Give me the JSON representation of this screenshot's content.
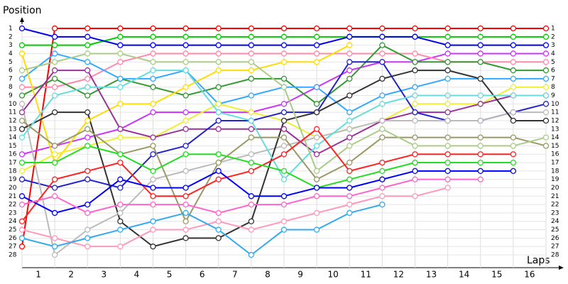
{
  "chart_data": {
    "type": "line",
    "y_label": "Position",
    "x_label": "Laps",
    "x": [
      0,
      1,
      2,
      3,
      4,
      5,
      6,
      7,
      8,
      9,
      10,
      11,
      12,
      13,
      14,
      15,
      16
    ],
    "xlim": [
      0,
      16
    ],
    "xticks": [
      {
        "value": 0.5,
        "label": "1"
      },
      {
        "value": 1.5,
        "label": "2"
      },
      {
        "value": 2.5,
        "label": "3"
      },
      {
        "value": 3.5,
        "label": "4"
      },
      {
        "value": 4.5,
        "label": "5"
      },
      {
        "value": 5.5,
        "label": "6"
      },
      {
        "value": 6.5,
        "label": "7"
      },
      {
        "value": 7.5,
        "label": "8"
      },
      {
        "value": 8.5,
        "label": "9"
      },
      {
        "value": 9.5,
        "label": "10"
      },
      {
        "value": 10.5,
        "label": "11"
      },
      {
        "value": 11.5,
        "label": "12"
      },
      {
        "value": 12.5,
        "label": "13"
      },
      {
        "value": 13.5,
        "label": "14"
      },
      {
        "value": 14.5,
        "label": "15"
      },
      {
        "value": 15.5,
        "label": "16"
      }
    ],
    "ylim": [
      28,
      1
    ],
    "yticks": [
      1,
      2,
      3,
      4,
      5,
      6,
      7,
      8,
      9,
      10,
      11,
      12,
      13,
      14,
      15,
      16,
      17,
      18,
      19,
      20,
      21,
      22,
      23,
      24,
      25,
      26,
      27,
      28
    ],
    "grid": true,
    "series": [
      {
        "color": "#ff0000",
        "values": [
          27,
          1,
          1,
          1,
          1,
          1,
          1,
          1,
          1,
          1,
          1,
          1,
          1,
          1,
          1,
          1,
          1
        ]
      },
      {
        "color": "#00cc00",
        "values": [
          3,
          3,
          3,
          2,
          2,
          2,
          2,
          2,
          2,
          2,
          2,
          2,
          2,
          2,
          2,
          2,
          2
        ]
      },
      {
        "color": "#0000ee",
        "values": [
          1,
          2,
          2,
          3,
          3,
          3,
          3,
          3,
          3,
          3,
          2,
          2,
          2,
          3,
          3,
          3,
          3
        ]
      },
      {
        "color": "#cc33ff",
        "values": [
          16,
          15,
          14,
          13,
          11,
          11,
          11,
          11,
          10,
          8,
          6,
          5,
          5,
          4,
          4,
          4,
          4
        ]
      },
      {
        "color": "#ff88aa",
        "values": [
          8,
          8,
          7,
          5,
          4,
          4,
          4,
          4,
          4,
          4,
          4,
          4,
          4,
          5,
          5,
          5,
          5
        ]
      },
      {
        "color": "#339933",
        "values": [
          9,
          7,
          9,
          7,
          8,
          9,
          8,
          7,
          7,
          10,
          7,
          3,
          5,
          5,
          5,
          6,
          6
        ]
      },
      {
        "color": "#33aaff",
        "values": [
          7,
          4,
          5,
          7,
          7,
          6,
          10,
          9,
          8,
          8,
          11,
          9,
          8,
          7,
          7,
          7,
          7
        ]
      },
      {
        "color": "#ffdd00",
        "values": [
          4,
          17,
          12,
          10,
          10,
          8,
          6,
          6,
          5,
          5,
          3,
          null,
          null,
          null,
          null,
          null,
          null
        ]
      },
      {
        "color": "#eeee33",
        "values": [
          18,
          16,
          15,
          14,
          14,
          12,
          10,
          11,
          12,
          14,
          13,
          12,
          10,
          10,
          10,
          8,
          8
        ]
      },
      {
        "color": "#993399",
        "values": [
          11,
          6,
          6,
          13,
          14,
          13,
          13,
          13,
          13,
          16,
          14,
          12,
          11,
          11,
          10,
          9,
          9
        ]
      },
      {
        "color": "#2222cc",
        "values": [
          19,
          20,
          19,
          20,
          16,
          15,
          12,
          12,
          11,
          11,
          5,
          5,
          11,
          12,
          12,
          11,
          10
        ]
      },
      {
        "color": "#bbbbbb",
        "values": [
          10,
          28,
          25,
          23,
          19,
          18,
          17,
          16,
          15,
          14,
          13,
          12,
          12,
          12,
          12,
          11,
          11
        ]
      },
      {
        "color": "#333333",
        "values": [
          13,
          11,
          11,
          24,
          27,
          26,
          26,
          24,
          12,
          11,
          9,
          7,
          6,
          6,
          7,
          12,
          12
        ]
      },
      {
        "color": "#66dddd",
        "values": [
          14,
          9,
          8,
          8,
          6,
          6,
          11,
          12,
          19,
          15,
          12,
          10,
          9,
          9,
          9,
          9,
          9
        ]
      },
      {
        "color": "#999966",
        "values": [
          12,
          15,
          13,
          16,
          15,
          24,
          17,
          14,
          14,
          19,
          17,
          14,
          14,
          14,
          14,
          14,
          15
        ]
      },
      {
        "color": "#aacc88",
        "values": [
          6,
          5,
          4,
          4,
          5,
          5,
          5,
          5,
          8,
          18,
          15,
          13,
          15,
          15,
          15,
          15,
          14
        ]
      },
      {
        "color": "#ff2222",
        "values": [
          24,
          19,
          18,
          17,
          21,
          21,
          19,
          18,
          16,
          13,
          18,
          17,
          16,
          16,
          16,
          16,
          null
        ]
      },
      {
        "color": "#22dd22",
        "values": [
          17,
          17,
          15,
          16,
          18,
          16,
          16,
          17,
          18,
          20,
          19,
          18,
          17,
          17,
          17,
          17,
          null
        ]
      },
      {
        "color": "#0000ff",
        "values": [
          21,
          23,
          22,
          19,
          20,
          20,
          18,
          21,
          21,
          20,
          20,
          19,
          18,
          18,
          18,
          18,
          null
        ]
      },
      {
        "color": "#ff66cc",
        "values": [
          22,
          21,
          23,
          22,
          22,
          22,
          23,
          22,
          22,
          21,
          21,
          20,
          19,
          19,
          19,
          null,
          null
        ]
      },
      {
        "color": "#ff99bb",
        "values": [
          25,
          26,
          27,
          27,
          25,
          25,
          24,
          25,
          24,
          23,
          22,
          21,
          21,
          20,
          null,
          null,
          null
        ]
      },
      {
        "color": "#33aaee",
        "values": [
          26,
          27,
          26,
          25,
          24,
          23,
          25,
          28,
          25,
          25,
          23,
          22,
          null,
          null,
          null,
          null,
          null
        ]
      }
    ]
  }
}
